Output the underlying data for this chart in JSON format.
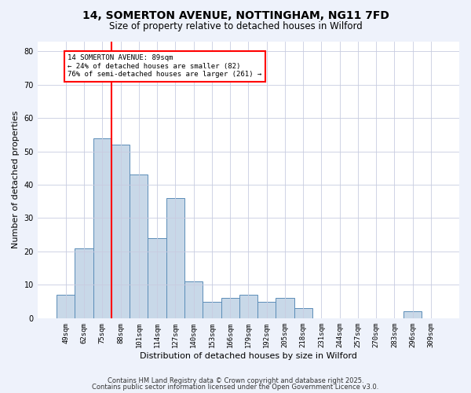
{
  "title1": "14, SOMERTON AVENUE, NOTTINGHAM, NG11 7FD",
  "title2": "Size of property relative to detached houses in Wilford",
  "xlabel": "Distribution of detached houses by size in Wilford",
  "ylabel": "Number of detached properties",
  "bar_labels": [
    "49sqm",
    "62sqm",
    "75sqm",
    "88sqm",
    "101sqm",
    "114sqm",
    "127sqm",
    "140sqm",
    "153sqm",
    "166sqm",
    "179sqm",
    "192sqm",
    "205sqm",
    "218sqm",
    "231sqm",
    "244sqm",
    "257sqm",
    "270sqm",
    "283sqm",
    "296sqm",
    "309sqm"
  ],
  "bar_values": [
    7,
    21,
    54,
    52,
    43,
    24,
    36,
    11,
    5,
    6,
    7,
    5,
    6,
    3,
    0,
    0,
    0,
    0,
    0,
    2,
    0
  ],
  "bar_color": "#c8d8e8",
  "bar_edge_color": "#5b8db8",
  "annotation_text": "14 SOMERTON AVENUE: 89sqm\n← 24% of detached houses are smaller (82)\n76% of semi-detached houses are larger (261) →",
  "annotation_box_color": "white",
  "annotation_box_edge_color": "red",
  "red_line_color": "red",
  "ylim": [
    0,
    83
  ],
  "yticks": [
    0,
    10,
    20,
    30,
    40,
    50,
    60,
    70,
    80
  ],
  "footer1": "Contains HM Land Registry data © Crown copyright and database right 2025.",
  "footer2": "Contains public sector information licensed under the Open Government Licence v3.0.",
  "bg_color": "#eef2fb",
  "plot_bg_color": "#ffffff",
  "grid_color": "#c8cce0"
}
